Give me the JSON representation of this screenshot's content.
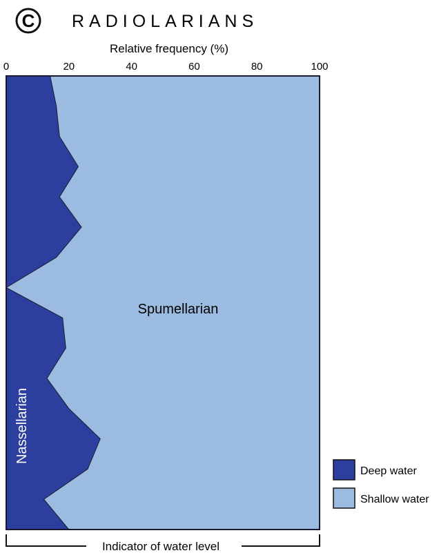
{
  "panel": {
    "letter": "C",
    "title": "RADIOLARIANS"
  },
  "colors": {
    "deep": "#2d3f9e",
    "shallow": "#9bbbe0",
    "outline": "#1a1a2e"
  },
  "chart_data": {
    "type": "area",
    "orientation": "vertical-stacked-percent",
    "xlabel": "Relative frequency (%)",
    "xlim": [
      0,
      100
    ],
    "xticks": [
      0,
      20,
      40,
      60,
      80,
      100
    ],
    "grid": false,
    "legend_placement": "bottom-right",
    "series": [
      {
        "name": "Nassellarian",
        "legend": "Deep water",
        "values": [
          14,
          16,
          17,
          23,
          17,
          24,
          16,
          0,
          18,
          19,
          13,
          20,
          30,
          26,
          12,
          20
        ]
      },
      {
        "name": "Spumellarian",
        "legend": "Shallow water",
        "values": [
          86,
          84,
          83,
          77,
          83,
          76,
          84,
          100,
          82,
          81,
          87,
          80,
          70,
          74,
          88,
          80
        ]
      }
    ],
    "footer": "Indicator of water level"
  }
}
